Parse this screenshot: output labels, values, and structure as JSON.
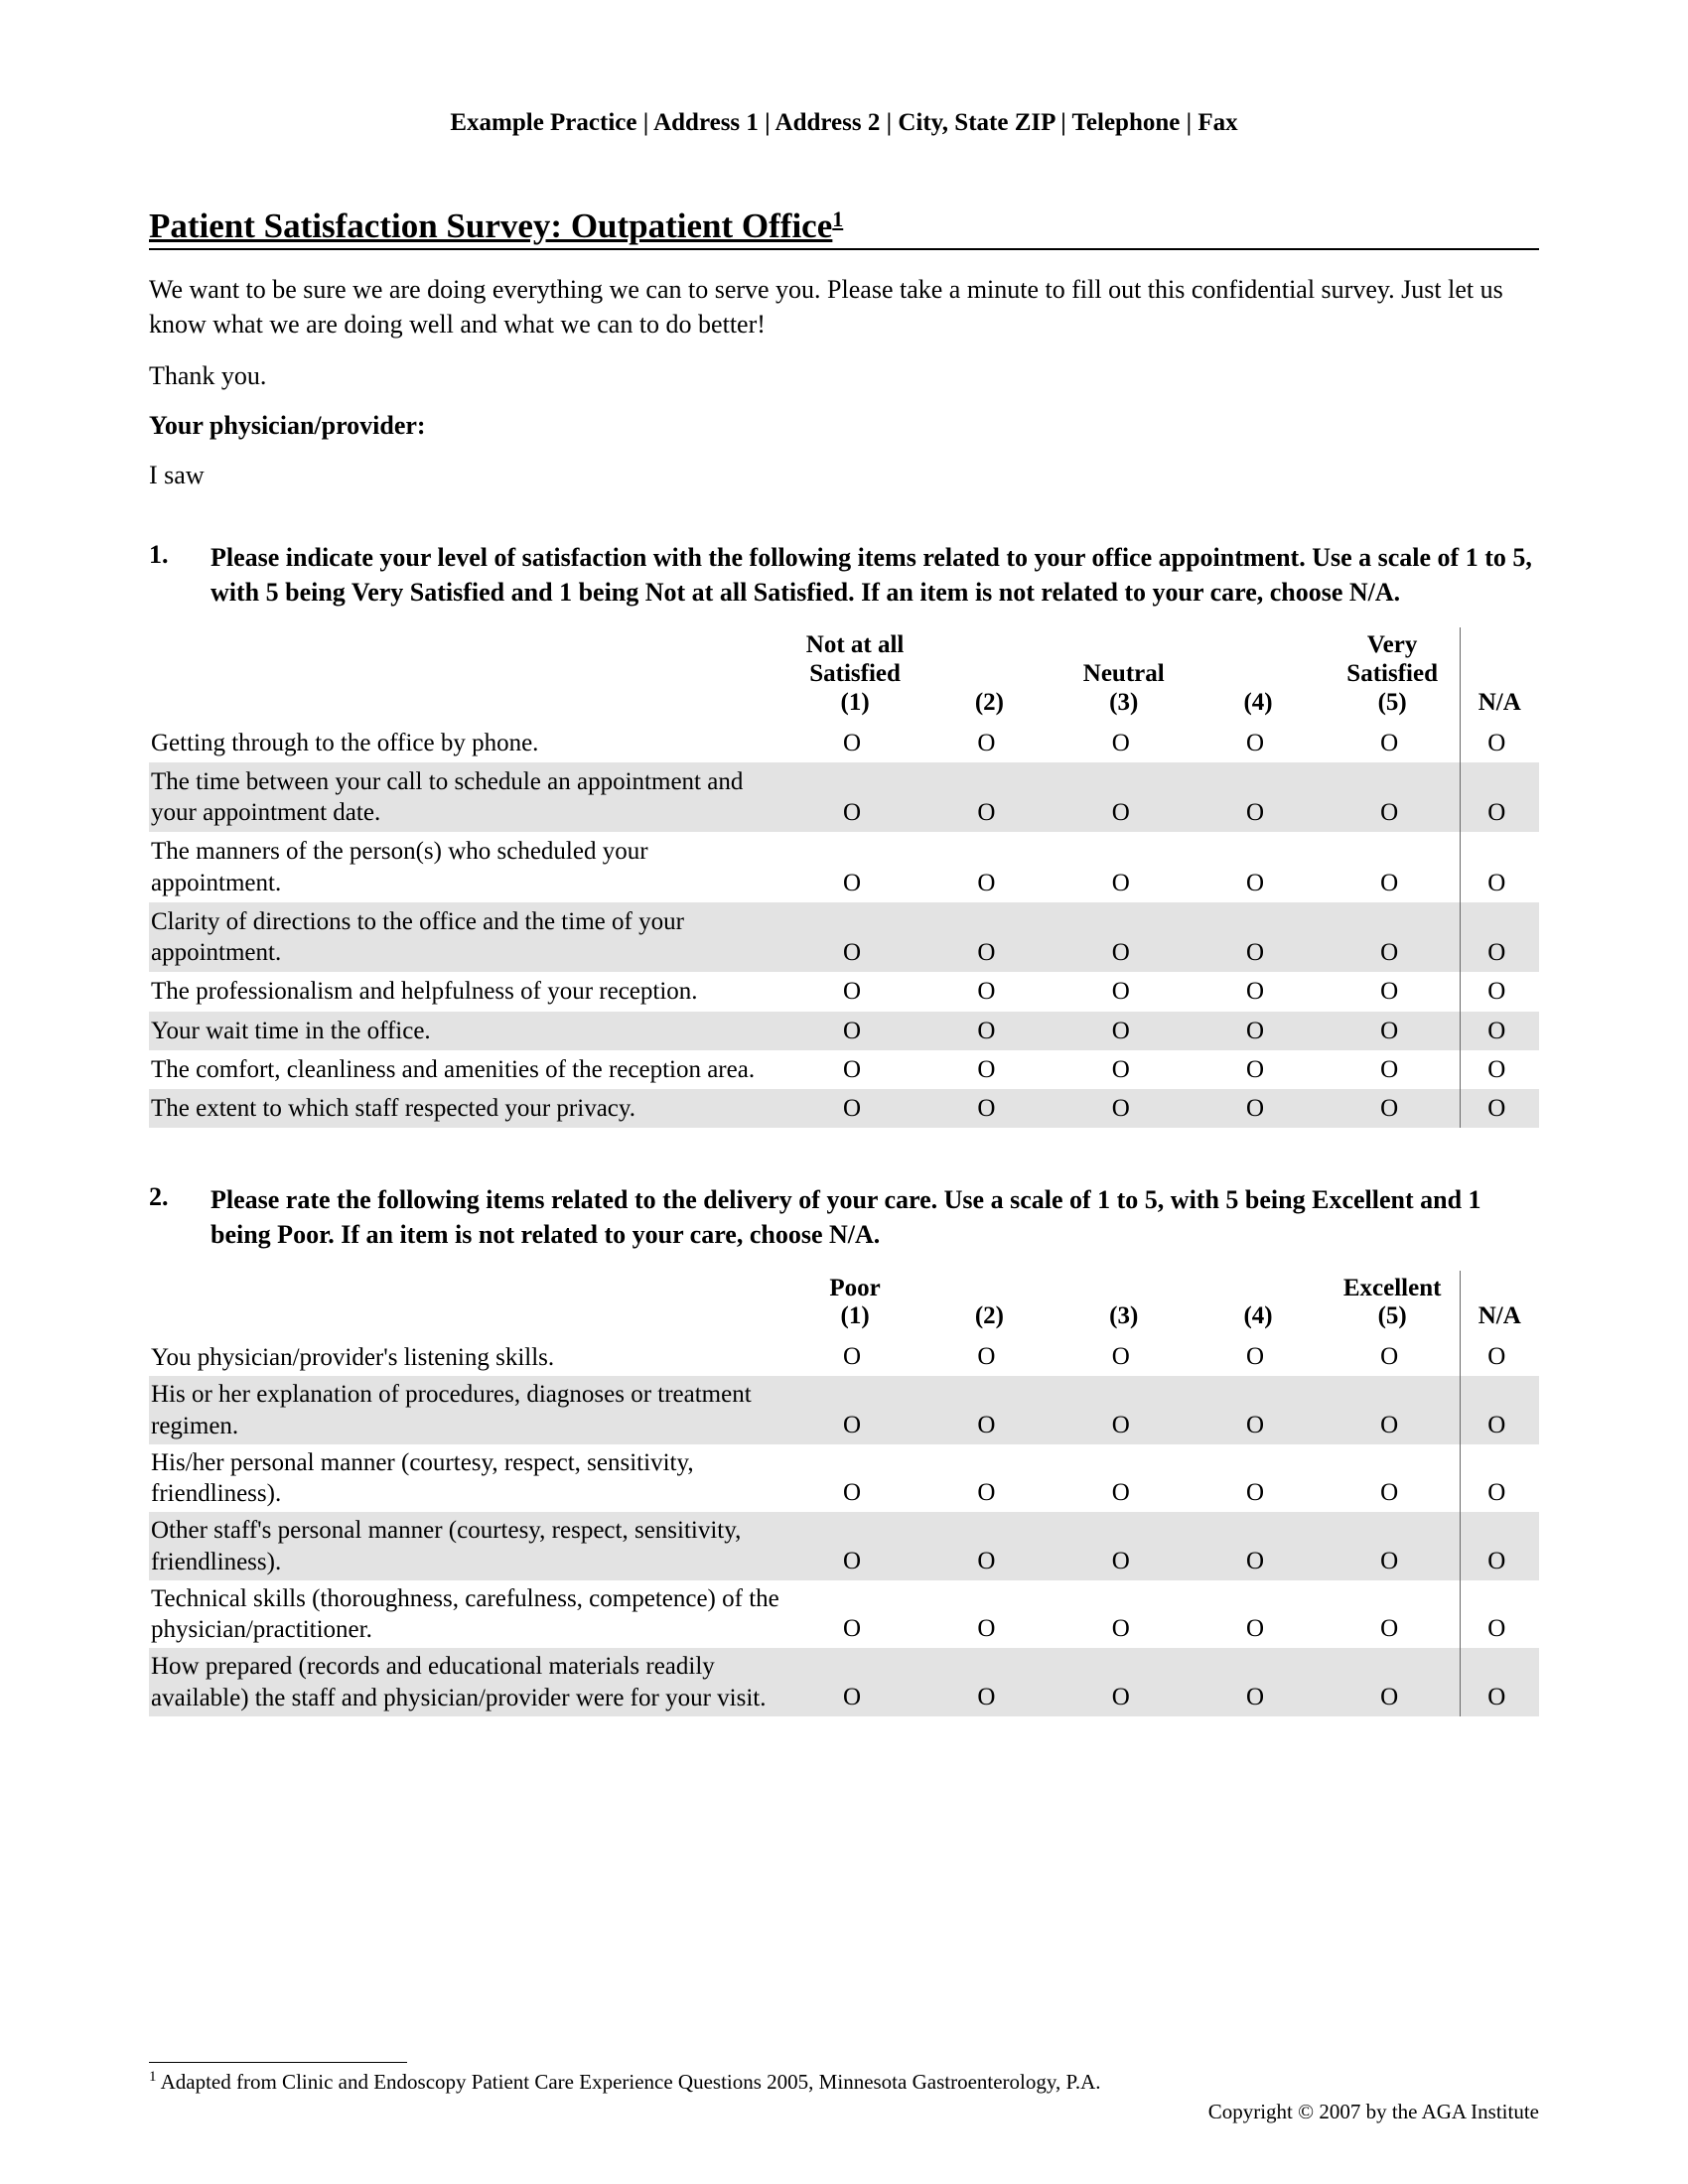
{
  "header": "Example Practice | Address 1 | Address 2 | City, State ZIP | Telephone | Fax",
  "title": "Patient Satisfaction Survey: Outpatient Office",
  "title_sup": "1",
  "intro": "We want to be sure we are doing everything we can to serve you. Please take a minute to fill out this confidential survey. Just let us know what we are doing well and what we can to do better!",
  "thank": "Thank you.",
  "provider_label": "Your physician/provider:",
  "isaw": "I saw",
  "q1": {
    "num": "1.",
    "text": "Please indicate your level of satisfaction with the following items related to your office appointment. Use a scale of 1 to 5, with 5 being Very Satisfied and 1 being Not at all Satisfied. If an item is not related to your care, choose N/A.",
    "col_head": {
      "c1a": "Not at all",
      "c1b": "Satisfied",
      "c1c": "(1)",
      "c2": "(2)",
      "c3a": "Neutral",
      "c3b": "(3)",
      "c4": "(4)",
      "c5a": "Very",
      "c5b": "Satisfied",
      "c5c": "(5)",
      "na": "N/A"
    },
    "rows": [
      "Getting through to the office by phone.",
      "The time between your call to schedule an appointment and your appointment date.",
      "The manners of the person(s) who scheduled your appointment.",
      "Clarity of directions to the office and the time of your appointment.",
      "The professionalism and helpfulness of your reception.",
      "Your wait time in the office.",
      "The comfort, cleanliness and amenities of the reception area.",
      "The extent to which staff respected your privacy."
    ]
  },
  "q2": {
    "num": "2.",
    "text": "Please rate the following items related to the delivery of your care. Use a scale of 1 to 5, with 5 being Excellent and 1 being Poor. If an item is not related to your care, choose N/A.",
    "col_head": {
      "c1a": "Poor",
      "c1b": "(1)",
      "c2": "(2)",
      "c3": "(3)",
      "c4": "(4)",
      "c5a": "Excellent",
      "c5b": "(5)",
      "na": "N/A"
    },
    "rows": [
      "You physician/provider's listening skills.",
      "His or her explanation of procedures, diagnoses or treatment regimen.",
      "His/her personal manner (courtesy, respect, sensitivity, friendliness).",
      "Other staff's personal manner (courtesy, respect, sensitivity, friendliness).",
      "Technical skills (thoroughness, carefulness, competence) of the physician/practitioner.",
      "How prepared (records and educational materials readily available) the staff and physician/provider were for your visit."
    ]
  },
  "opt_glyph": "O",
  "footnote": "Adapted from Clinic and Endoscopy Patient Care Experience Questions 2005, Minnesota Gastroenterology, P.A.",
  "footnote_sup": "1",
  "copyright": "Copyright © 2007 by the AGA Institute",
  "style": {
    "shaded_bg": "#e3e3e3",
    "row_spacing_q2_extra_padding": 3
  }
}
